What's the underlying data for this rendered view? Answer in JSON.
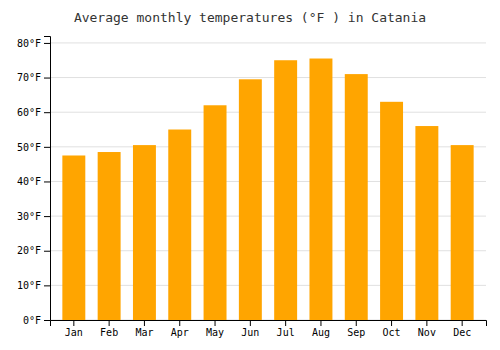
{
  "chart_data": {
    "type": "bar",
    "title": "Average monthly temperatures (°F ) in Catania",
    "categories": [
      "Jan",
      "Feb",
      "Mar",
      "Apr",
      "May",
      "Jun",
      "Jul",
      "Aug",
      "Sep",
      "Oct",
      "Nov",
      "Dec"
    ],
    "values": [
      47.5,
      48.5,
      50.5,
      55.0,
      62.0,
      69.5,
      75.0,
      75.5,
      71.0,
      63.0,
      56.0,
      50.5
    ],
    "color": "#FFA500",
    "ylim": [
      0,
      82
    ],
    "yticks": [
      {
        "value": 0,
        "label": "0°F"
      },
      {
        "value": 10,
        "label": "10°F"
      },
      {
        "value": 20,
        "label": "20°F"
      },
      {
        "value": 30,
        "label": "30°F"
      },
      {
        "value": 40,
        "label": "40°F"
      },
      {
        "value": 50,
        "label": "50°F"
      },
      {
        "value": 60,
        "label": "60°F"
      },
      {
        "value": 70,
        "label": "70°F"
      },
      {
        "value": 80,
        "label": "80°F"
      }
    ],
    "grid": true
  }
}
